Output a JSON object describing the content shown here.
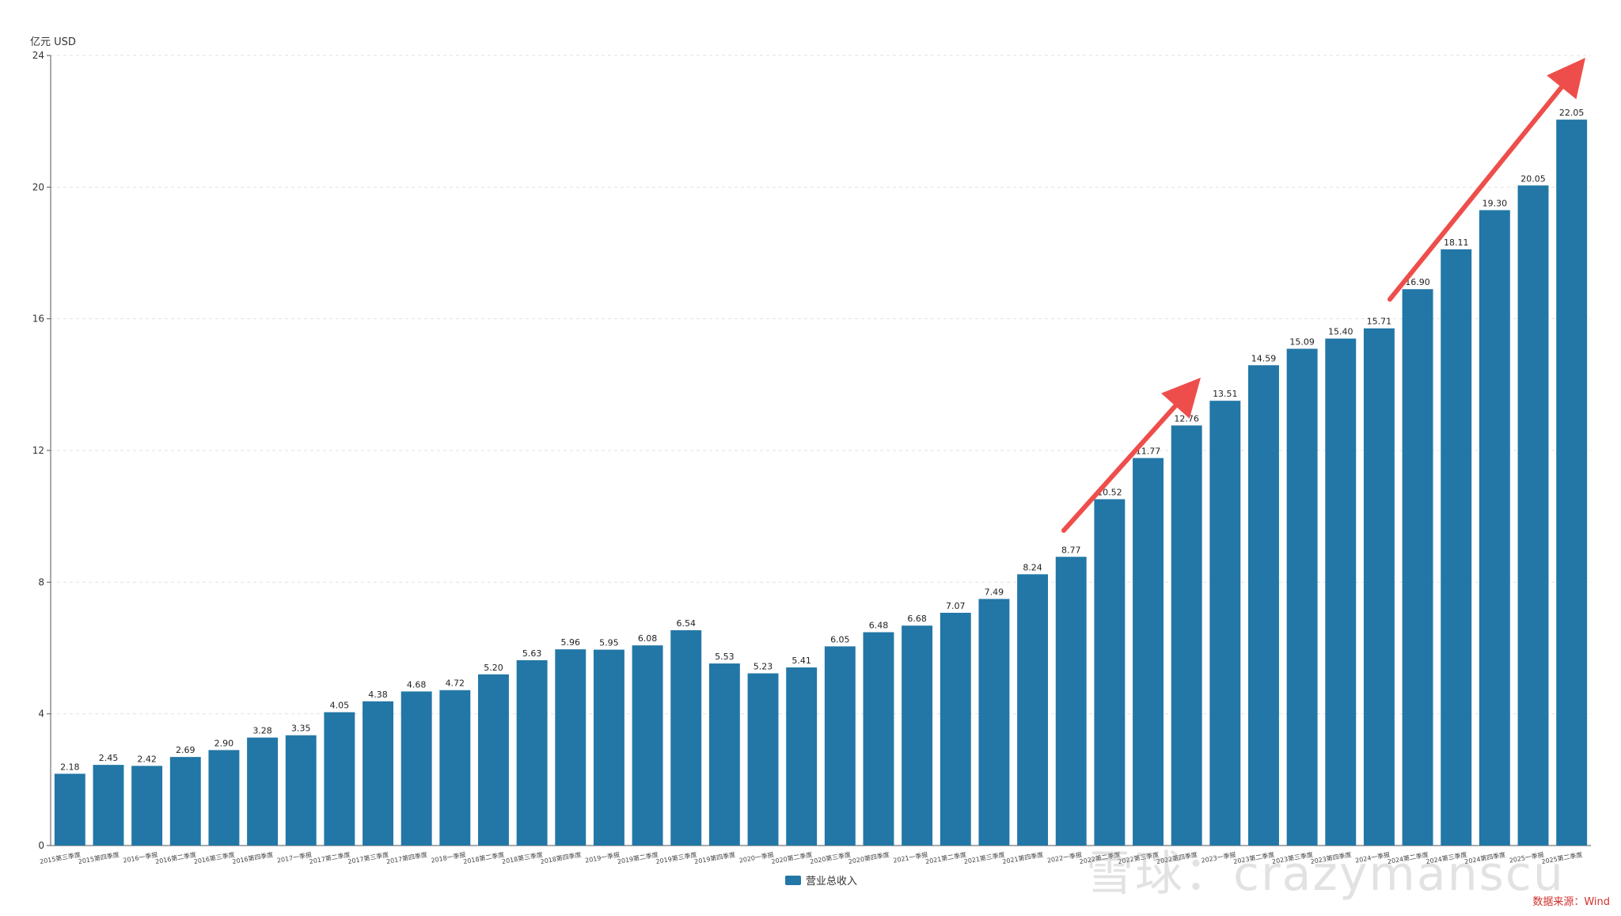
{
  "chart_data": {
    "type": "bar",
    "unit_label": "亿元  USD",
    "source_label": "数据来源：Wind",
    "watermark": "雪球：crazymanscu",
    "ylim": [
      0,
      24
    ],
    "yticks": [
      0,
      4,
      8,
      12,
      16,
      20,
      24
    ],
    "grid": true,
    "legend_position": "bottom-center",
    "bar_color": "#2277a6",
    "arrow_color": "#ee4e4b",
    "categories": [
      "2015第三季度",
      "2015第四季度",
      "2016一季报",
      "2016第二季度",
      "2016第三季度",
      "2016第四季度",
      "2017一季报",
      "2017第二季度",
      "2017第三季度",
      "2017第四季度",
      "2018一季报",
      "2018第二季度",
      "2018第三季度",
      "2018第四季度",
      "2019一季报",
      "2019第二季度",
      "2019第三季度",
      "2019第四季度",
      "2020一季报",
      "2020第二季度",
      "2020第三季度",
      "2020第四季度",
      "2021一季报",
      "2021第二季度",
      "2021第三季度",
      "2021第四季度",
      "2022一季报",
      "2022第二季度",
      "2022第三季度",
      "2022第四季度",
      "2023一季报",
      "2023第二季度",
      "2023第三季度",
      "2023第四季度",
      "2024一季报",
      "2024第二季度",
      "2024第三季度",
      "2024第四季度",
      "2025一季报",
      "2025第二季度"
    ],
    "series": [
      {
        "name": "营业总收入",
        "values": [
          2.18,
          2.45,
          2.42,
          2.69,
          2.9,
          3.28,
          3.35,
          4.05,
          4.38,
          4.68,
          4.72,
          5.2,
          5.63,
          5.96,
          5.95,
          6.08,
          6.54,
          5.53,
          5.23,
          5.41,
          6.05,
          6.48,
          6.68,
          7.07,
          7.49,
          8.24,
          8.77,
          10.52,
          11.77,
          12.76,
          13.51,
          14.59,
          15.09,
          15.4,
          15.71,
          16.9,
          18.11,
          19.3,
          20.05,
          22.05
        ],
        "labels": [
          "2.18",
          "2.45",
          "2.42",
          "2.69",
          "2.90",
          "3.28",
          "3.35",
          "4.05",
          "4.38",
          "4.68",
          "4.72",
          "5.20",
          "5.63",
          "5.96",
          "5.95",
          "6.08",
          "6.54",
          "5.53",
          "5.23",
          "5.41",
          "6.05",
          "6.48",
          "6.68",
          "7.07",
          "7.49",
          "8.24",
          "8.77",
          "10.52",
          "11.77",
          "12.76",
          "13.51",
          "14.59",
          "15.09",
          "15.40",
          "15.71",
          "16.90",
          "18.11",
          "19.30",
          "20.05",
          "22.05"
        ]
      }
    ]
  }
}
